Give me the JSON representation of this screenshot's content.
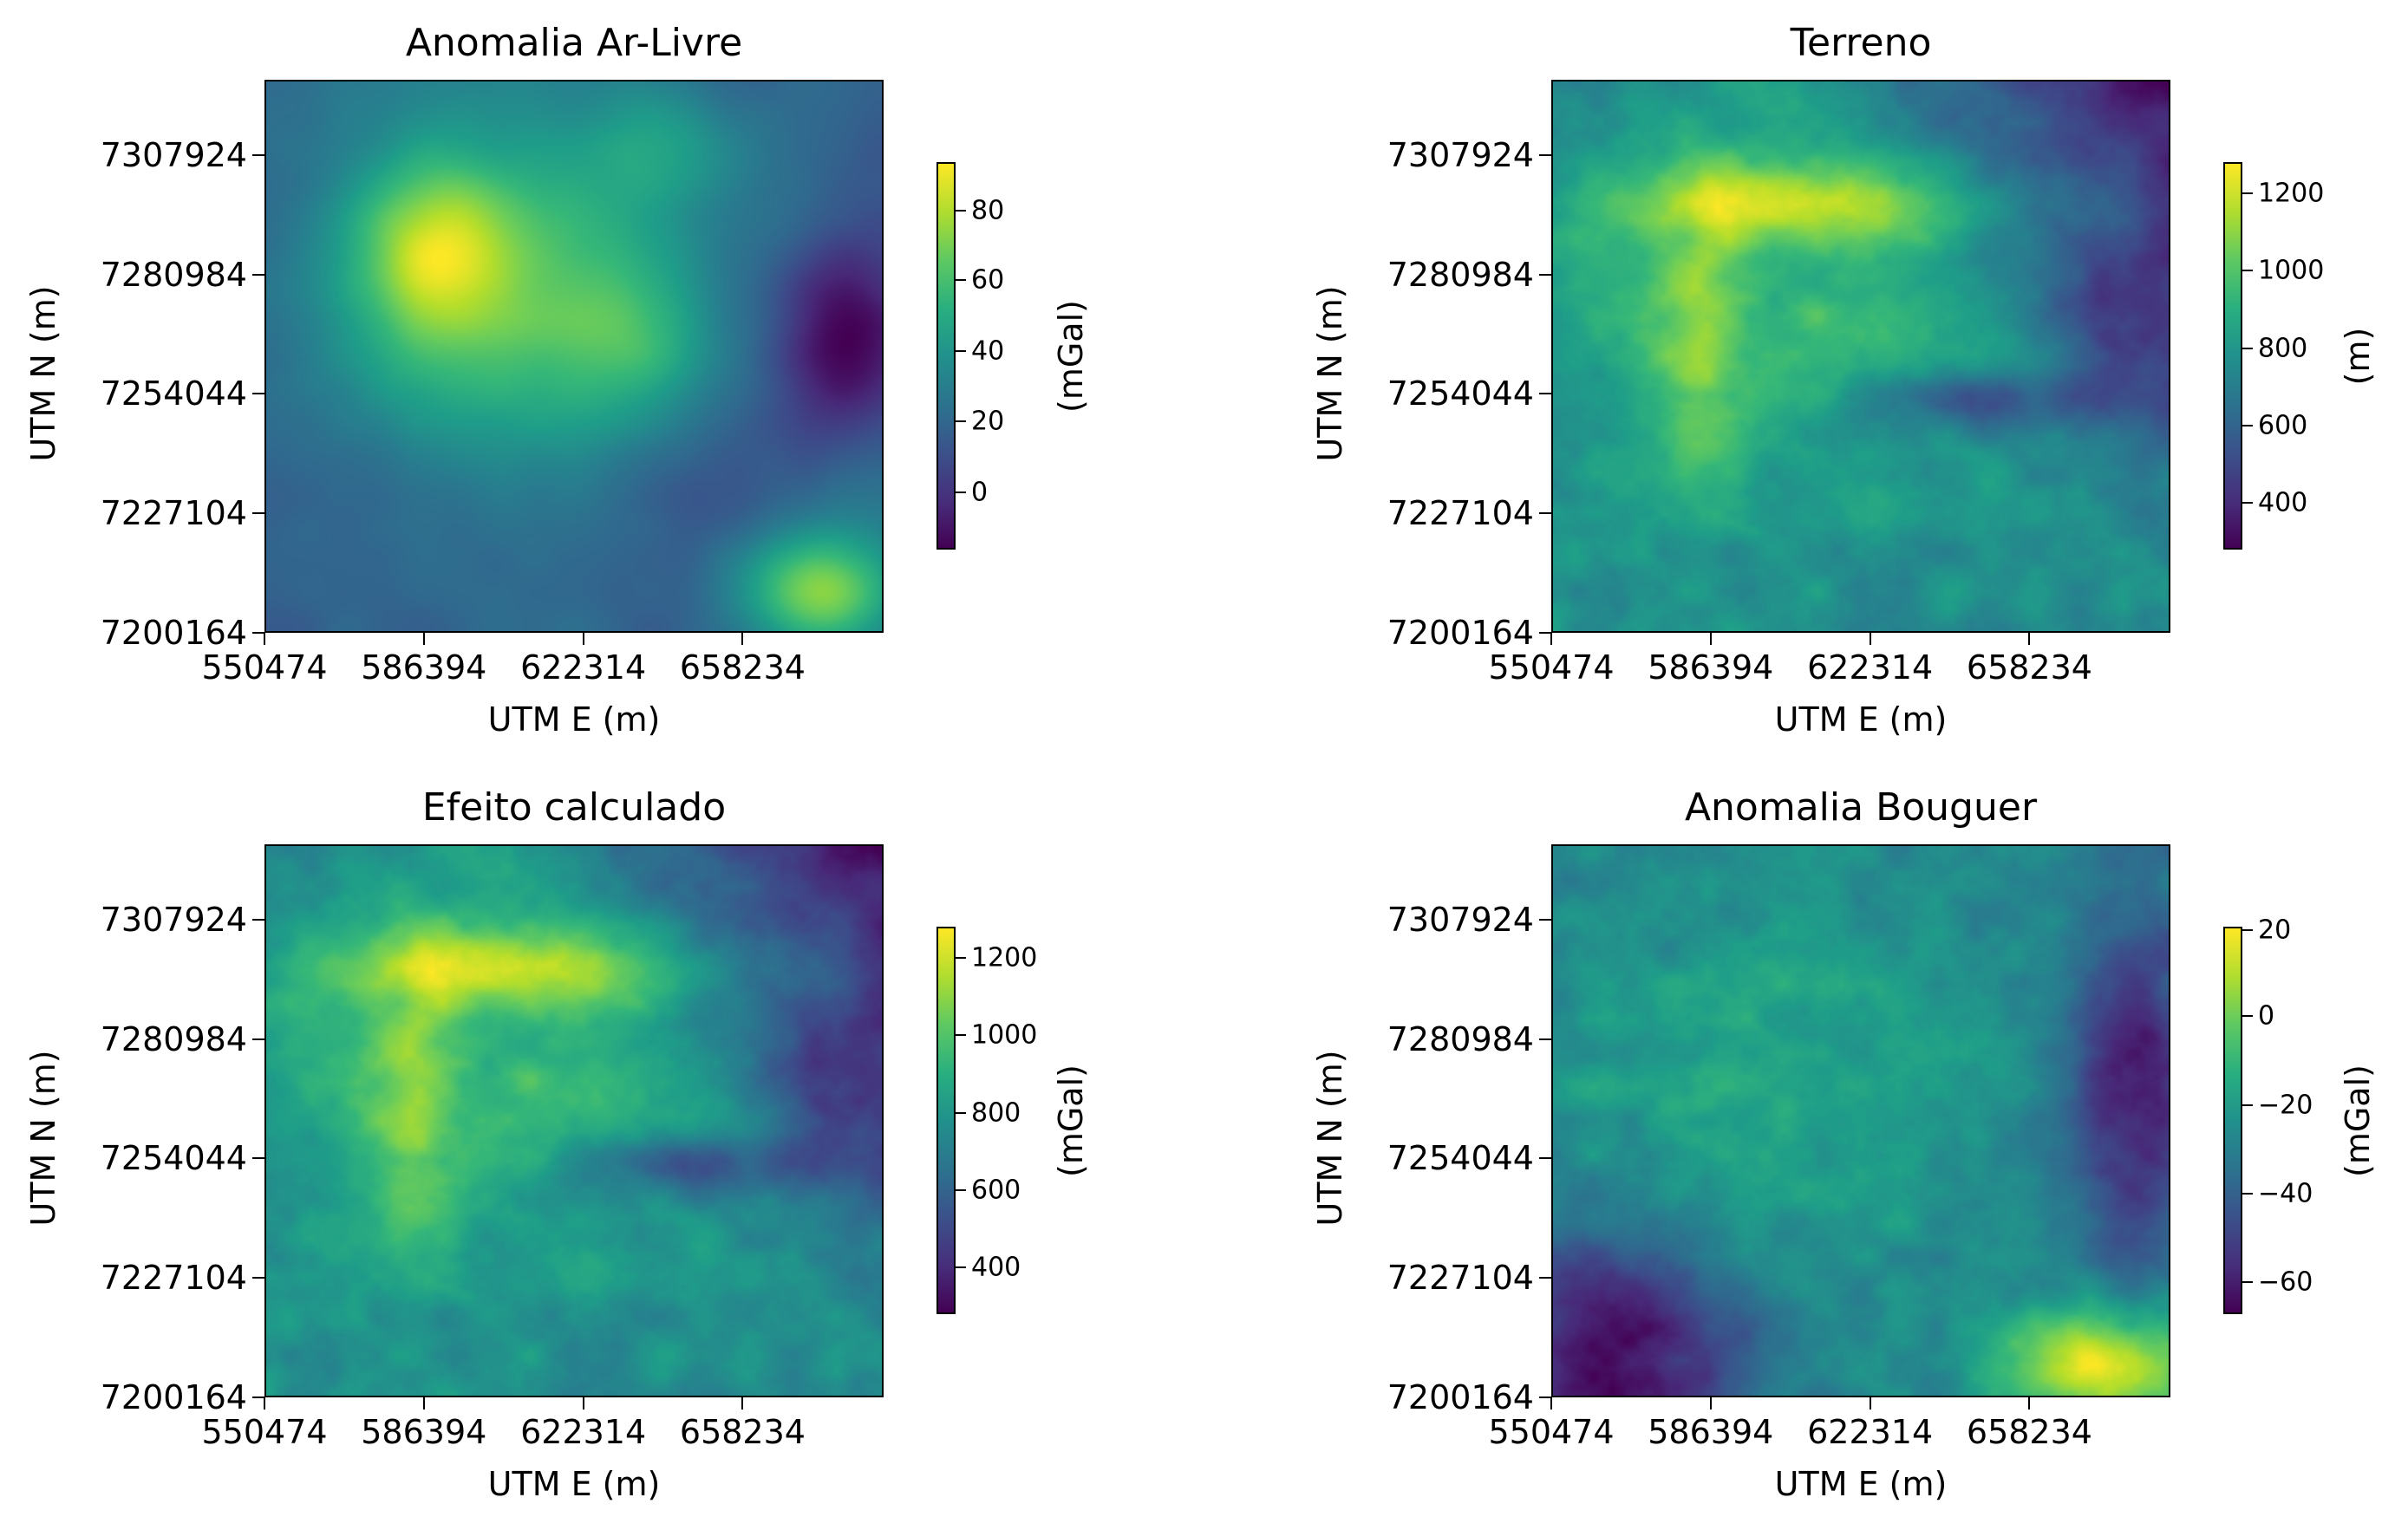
{
  "chart_data": [
    {
      "type": "heatmap",
      "title": "Anomalia Ar-Livre",
      "xlabel": "UTM E (m)",
      "ylabel": "UTM N (m)",
      "xticks": [
        "550474",
        "586394",
        "622314",
        "658234"
      ],
      "yticks": [
        "7307924",
        "7280984",
        "7254044",
        "7227104",
        "7200164"
      ],
      "xlim": [
        550474,
        690000
      ],
      "ylim": [
        7200164,
        7325000
      ],
      "colormap": "viridis",
      "colorbar": {
        "label": "(mGal)",
        "ticks": [
          "80",
          "60",
          "40",
          "20",
          "0"
        ],
        "range": [
          -15,
          93
        ]
      }
    },
    {
      "type": "heatmap",
      "title": "Terreno",
      "xlabel": "UTM E (m)",
      "ylabel": "UTM N (m)",
      "xticks": [
        "550474",
        "586394",
        "622314",
        "658234"
      ],
      "yticks": [
        "7307924",
        "7280984",
        "7254044",
        "7227104",
        "7200164"
      ],
      "xlim": [
        550474,
        690000
      ],
      "ylim": [
        7200164,
        7325000
      ],
      "colormap": "viridis",
      "colorbar": {
        "label": "(m)",
        "ticks": [
          "1200",
          "1000",
          "800",
          "600",
          "400"
        ],
        "range": [
          280,
          1280
        ]
      }
    },
    {
      "type": "heatmap",
      "title": "Efeito calculado",
      "xlabel": "UTM E (m)",
      "ylabel": "UTM N (m)",
      "xticks": [
        "550474",
        "586394",
        "622314",
        "658234"
      ],
      "yticks": [
        "7307924",
        "7280984",
        "7254044",
        "7227104",
        "7200164"
      ],
      "xlim": [
        550474,
        690000
      ],
      "ylim": [
        7200164,
        7325000
      ],
      "colormap": "viridis",
      "colorbar": {
        "label": "(mGal)",
        "ticks": [
          "1200",
          "1000",
          "800",
          "600",
          "400"
        ],
        "range": [
          280,
          1280
        ]
      }
    },
    {
      "type": "heatmap",
      "title": "Anomalia Bouguer",
      "xlabel": "UTM E (m)",
      "ylabel": "UTM N (m)",
      "xticks": [
        "550474",
        "586394",
        "622314",
        "658234"
      ],
      "yticks": [
        "7307924",
        "7280984",
        "7254044",
        "7227104",
        "7200164"
      ],
      "xlim": [
        550474,
        690000
      ],
      "ylim": [
        7200164,
        7325000
      ],
      "colormap": "viridis",
      "colorbar": {
        "label": "(mGal)",
        "ticks": [
          "20",
          "0",
          "−20",
          "−40",
          "−60"
        ],
        "range": [
          -66,
          21
        ]
      }
    }
  ]
}
